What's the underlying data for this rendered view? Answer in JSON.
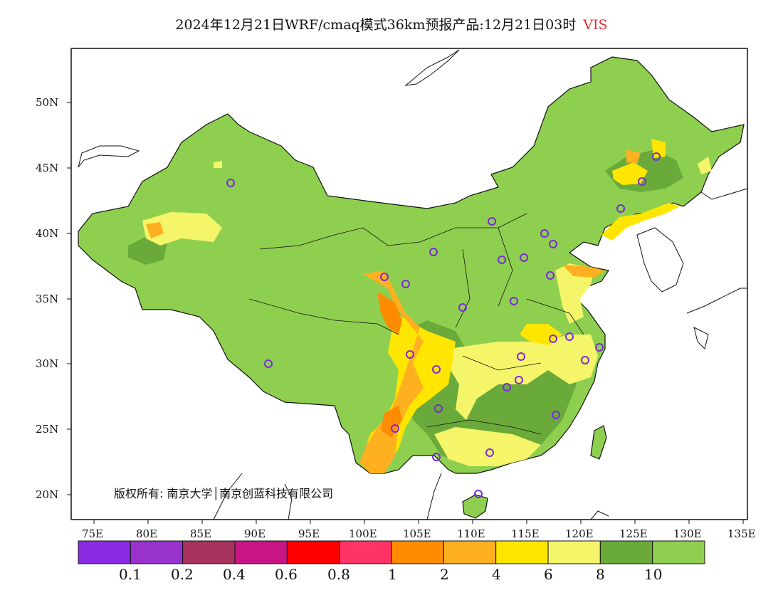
{
  "title": "2024年12月21日WRF/cmaq模式36km预报产品:12月21日03时",
  "variable": "VIS",
  "colors": {
    "variable_title": "#e03030",
    "background": "#ffffff",
    "land_default": "#8fcf50",
    "outline": "#111111",
    "marker": "#7b2bd6"
  },
  "lat_labels": [
    "50N",
    "45N",
    "40N",
    "35N",
    "30N",
    "25N",
    "20N"
  ],
  "lon_labels": [
    "75E",
    "80E",
    "85E",
    "90E",
    "95E",
    "100E",
    "105E",
    "110E",
    "115E",
    "120E",
    "125E",
    "130E",
    "135E"
  ],
  "legend": {
    "colors": [
      "#8a2be2",
      "#9932cc",
      "#a8325e",
      "#c71585",
      "#ff0000",
      "#ff3366",
      "#ff8c00",
      "#ffb020",
      "#ffe600",
      "#f5f56a",
      "#6aaa3a",
      "#8fcf50"
    ],
    "tick_labels": [
      "0.1",
      "0.2",
      "0.4",
      "0.6",
      "0.8",
      "1",
      "2",
      "4",
      "6",
      "8",
      "10"
    ]
  },
  "copyright": "版权所有: 南京大学│南京创蓝科技有限公司"
}
